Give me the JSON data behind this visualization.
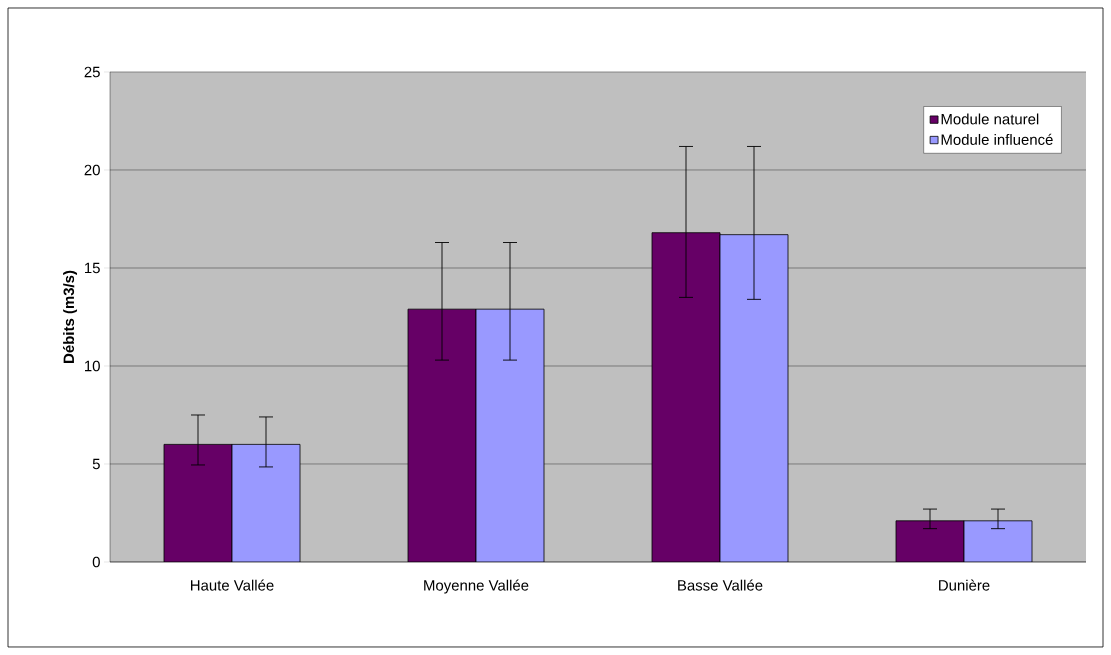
{
  "chart_data": {
    "type": "bar",
    "ylabel": "Débits (m3/s)",
    "categories": [
      "Haute Vallée",
      "Moyenne Vallée",
      "Basse Vallée",
      "Dunière"
    ],
    "series": [
      {
        "name": "Module naturel",
        "color": "#660066",
        "values": [
          6.0,
          12.9,
          16.8,
          2.1
        ],
        "errors": [
          [
            4.95,
            7.5
          ],
          [
            10.3,
            16.3
          ],
          [
            13.5,
            21.2
          ],
          [
            1.7,
            2.7
          ]
        ]
      },
      {
        "name": "Module influencé",
        "color": "#9999ff",
        "values": [
          6.0,
          12.9,
          16.7,
          2.1
        ],
        "errors": [
          [
            4.85,
            7.4
          ],
          [
            10.3,
            16.3
          ],
          [
            13.4,
            21.2
          ],
          [
            1.7,
            2.7
          ]
        ]
      }
    ],
    "ylim": [
      0,
      25
    ],
    "yticks": [
      0,
      5,
      10,
      15,
      20,
      25
    ],
    "grid": "y",
    "legend": "top right"
  }
}
